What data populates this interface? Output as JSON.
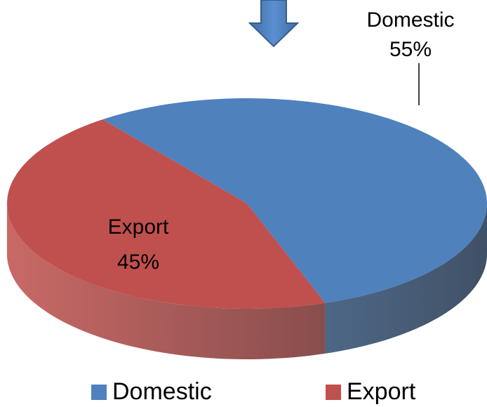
{
  "chart_data": {
    "type": "pie3d",
    "categories": [
      "Domestic",
      "Export"
    ],
    "values": [
      55,
      45
    ],
    "value_labels": [
      "55%",
      "45%"
    ],
    "colors": [
      "#4f81bd",
      "#c0504d"
    ],
    "legend": "bottom"
  }
}
